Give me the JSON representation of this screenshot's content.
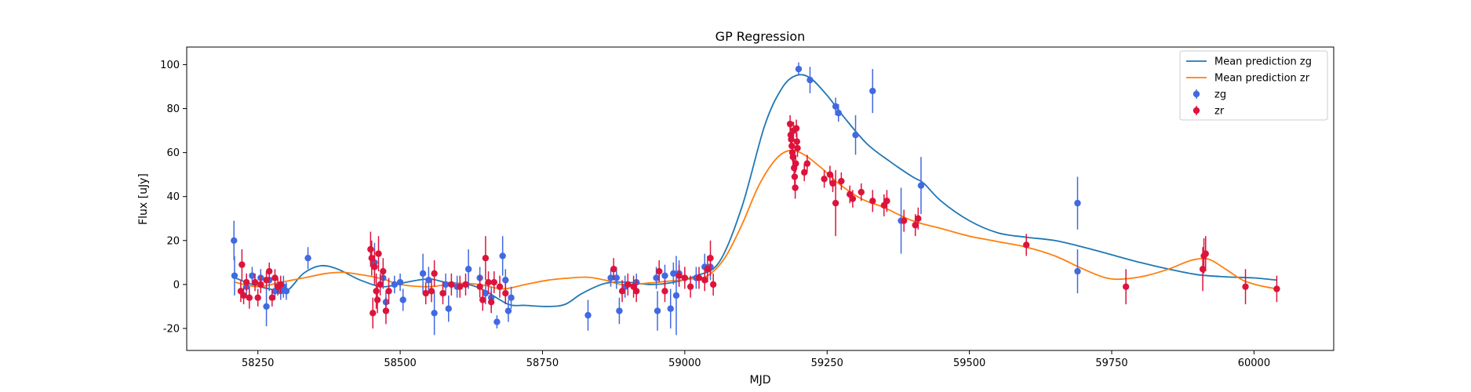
{
  "chart_data": {
    "type": "scatter",
    "title": "GP Regression",
    "xlabel": "MJD",
    "ylabel": "Flux [uJy]",
    "xlim": [
      58125,
      60140
    ],
    "ylim": [
      -30,
      108
    ],
    "xticks": [
      58250,
      58500,
      58750,
      59000,
      59250,
      59500,
      59750,
      60000
    ],
    "yticks": [
      -20,
      0,
      20,
      40,
      60,
      80,
      100
    ],
    "legend": {
      "position": "top-right",
      "entries": [
        {
          "label": "Mean prediction zg",
          "kind": "line",
          "color": "#1f77b4"
        },
        {
          "label": "Mean prediction zr",
          "kind": "line",
          "color": "#ff7f0e"
        },
        {
          "label": "zg",
          "kind": "errorbar",
          "color": "#4169e1"
        },
        {
          "label": "zr",
          "kind": "errorbar",
          "color": "#dc143c"
        }
      ]
    },
    "series": [
      {
        "name": "Mean prediction zg",
        "kind": "line",
        "color": "#1f77b4",
        "points": [
          [
            58210,
            3
          ],
          [
            58240,
            0
          ],
          [
            58270,
            -2
          ],
          [
            58300,
            -3
          ],
          [
            58330,
            5
          ],
          [
            58360,
            8.5
          ],
          [
            58390,
            7
          ],
          [
            58430,
            2
          ],
          [
            58470,
            -1
          ],
          [
            58510,
            1
          ],
          [
            58550,
            2.5
          ],
          [
            58580,
            1
          ],
          [
            58620,
            0
          ],
          [
            58650,
            -3
          ],
          [
            58690,
            -9
          ],
          [
            58720,
            -9.5
          ],
          [
            58760,
            -10
          ],
          [
            58790,
            -9
          ],
          [
            58820,
            -4
          ],
          [
            58860,
            0.5
          ],
          [
            58900,
            1
          ],
          [
            58940,
            0
          ],
          [
            58980,
            1
          ],
          [
            59020,
            4
          ],
          [
            59060,
            10
          ],
          [
            59100,
            35
          ],
          [
            59140,
            72
          ],
          [
            59170,
            89
          ],
          [
            59195,
            95
          ],
          [
            59220,
            94
          ],
          [
            59250,
            86
          ],
          [
            59280,
            76
          ],
          [
            59320,
            64
          ],
          [
            59360,
            56
          ],
          [
            59400,
            49
          ],
          [
            59420,
            46
          ],
          [
            59450,
            38
          ],
          [
            59500,
            29
          ],
          [
            59550,
            23.5
          ],
          [
            59600,
            21.5
          ],
          [
            59650,
            20
          ],
          [
            59700,
            17
          ],
          [
            59750,
            13.5
          ],
          [
            59800,
            10
          ],
          [
            59850,
            7
          ],
          [
            59900,
            4.5
          ],
          [
            59950,
            3.5
          ],
          [
            60000,
            3
          ],
          [
            60040,
            2
          ]
        ]
      },
      {
        "name": "Mean prediction zr",
        "kind": "line",
        "color": "#ff7f0e",
        "points": [
          [
            58210,
            1
          ],
          [
            58250,
            -1
          ],
          [
            58290,
            1
          ],
          [
            58330,
            3
          ],
          [
            58370,
            5
          ],
          [
            58400,
            5.5
          ],
          [
            58430,
            4.5
          ],
          [
            58470,
            2.5
          ],
          [
            58500,
            0
          ],
          [
            58550,
            -1
          ],
          [
            58600,
            0.5
          ],
          [
            58640,
            0
          ],
          [
            58680,
            -2
          ],
          [
            58720,
            0
          ],
          [
            58760,
            2
          ],
          [
            58800,
            3
          ],
          [
            58830,
            3.3
          ],
          [
            58860,
            2
          ],
          [
            58890,
            0
          ],
          [
            58930,
            0.5
          ],
          [
            58970,
            1.5
          ],
          [
            59010,
            2.5
          ],
          [
            59040,
            4
          ],
          [
            59070,
            12
          ],
          [
            59100,
            27
          ],
          [
            59130,
            45
          ],
          [
            59160,
            57
          ],
          [
            59185,
            61
          ],
          [
            59210,
            59
          ],
          [
            59240,
            53
          ],
          [
            59270,
            46
          ],
          [
            59310,
            39
          ],
          [
            59350,
            35
          ],
          [
            59400,
            29
          ],
          [
            59450,
            25.5
          ],
          [
            59500,
            22
          ],
          [
            59550,
            19.5
          ],
          [
            59600,
            17
          ],
          [
            59650,
            13
          ],
          [
            59700,
            7
          ],
          [
            59740,
            3
          ],
          [
            59770,
            2.5
          ],
          [
            59810,
            4
          ],
          [
            59850,
            7
          ],
          [
            59890,
            11
          ],
          [
            59920,
            11.5
          ],
          [
            59950,
            7
          ],
          [
            59980,
            2
          ],
          [
            60010,
            -0.5
          ],
          [
            60040,
            -2
          ]
        ]
      },
      {
        "name": "zg",
        "kind": "errorbar",
        "color": "#4169e1",
        "points": [
          [
            58208,
            20,
            9
          ],
          [
            58209,
            4,
            9
          ],
          [
            58230,
            -1,
            5
          ],
          [
            58240,
            4,
            4
          ],
          [
            58255,
            3,
            4
          ],
          [
            58265,
            -10,
            9
          ],
          [
            58270,
            2,
            5
          ],
          [
            58280,
            -3,
            4
          ],
          [
            58290,
            -3,
            4
          ],
          [
            58295,
            -1,
            5
          ],
          [
            58300,
            -3,
            4
          ],
          [
            58338,
            12,
            5
          ],
          [
            58455,
            10,
            9
          ],
          [
            58470,
            3,
            5
          ],
          [
            58475,
            -8,
            5
          ],
          [
            58490,
            0,
            4
          ],
          [
            58500,
            1,
            4
          ],
          [
            58505,
            -7,
            5
          ],
          [
            58540,
            5,
            9
          ],
          [
            58550,
            2,
            6
          ],
          [
            58560,
            -13,
            10
          ],
          [
            58580,
            0,
            5
          ],
          [
            58585,
            -11,
            6
          ],
          [
            58600,
            -1,
            5
          ],
          [
            58620,
            7,
            9
          ],
          [
            58640,
            3,
            5
          ],
          [
            58650,
            -4,
            5
          ],
          [
            58660,
            -6,
            5
          ],
          [
            58670,
            -17,
            3
          ],
          [
            58680,
            13,
            9
          ],
          [
            58685,
            2,
            5
          ],
          [
            58690,
            -12,
            5
          ],
          [
            58695,
            -6,
            5
          ],
          [
            58830,
            -14,
            7
          ],
          [
            58870,
            3,
            4
          ],
          [
            58880,
            3,
            5
          ],
          [
            58885,
            -12,
            6
          ],
          [
            58895,
            -1,
            5
          ],
          [
            58915,
            1,
            4
          ],
          [
            58950,
            3,
            5
          ],
          [
            58952,
            -12,
            9
          ],
          [
            58965,
            4,
            5
          ],
          [
            58975,
            -11,
            9
          ],
          [
            58980,
            5,
            5
          ],
          [
            58985,
            -5,
            18
          ],
          [
            58990,
            5,
            6
          ],
          [
            59020,
            3,
            5
          ],
          [
            59035,
            8,
            6
          ],
          [
            59045,
            8,
            6
          ],
          [
            59200,
            98,
            3
          ],
          [
            59220,
            93,
            6
          ],
          [
            59265,
            81,
            4
          ],
          [
            59270,
            78,
            4
          ],
          [
            59300,
            68,
            9
          ],
          [
            59330,
            88,
            10
          ],
          [
            59380,
            29,
            15
          ],
          [
            59415,
            45,
            13
          ],
          [
            59690,
            37,
            12
          ],
          [
            59690,
            6,
            10
          ]
        ]
      },
      {
        "name": "zr",
        "kind": "errorbar",
        "color": "#dc143c",
        "points": [
          [
            58220,
            -3,
            5
          ],
          [
            58222,
            9,
            7
          ],
          [
            58225,
            -5,
            4
          ],
          [
            58230,
            1,
            4
          ],
          [
            58235,
            -6,
            5
          ],
          [
            58245,
            1,
            4
          ],
          [
            58250,
            -6,
            4
          ],
          [
            58255,
            0,
            4
          ],
          [
            58265,
            2,
            4
          ],
          [
            58270,
            6,
            4
          ],
          [
            58275,
            -6,
            4
          ],
          [
            58280,
            3,
            4
          ],
          [
            58285,
            -1,
            4
          ],
          [
            58290,
            0,
            4
          ],
          [
            58448,
            16,
            8
          ],
          [
            58450,
            12,
            8
          ],
          [
            58452,
            -13,
            7
          ],
          [
            58455,
            8,
            8
          ],
          [
            58458,
            -3,
            8
          ],
          [
            58460,
            -7,
            6
          ],
          [
            58462,
            14,
            8
          ],
          [
            58465,
            0,
            5
          ],
          [
            58470,
            6,
            6
          ],
          [
            58475,
            -12,
            6
          ],
          [
            58480,
            -3,
            6
          ],
          [
            58545,
            -4,
            5
          ],
          [
            58555,
            -3,
            5
          ],
          [
            58560,
            5,
            6
          ],
          [
            58575,
            -4,
            5
          ],
          [
            58590,
            0,
            5
          ],
          [
            58605,
            -1,
            5
          ],
          [
            58615,
            0,
            5
          ],
          [
            58640,
            -1,
            5
          ],
          [
            58645,
            -7,
            5
          ],
          [
            58650,
            12,
            10
          ],
          [
            58655,
            1,
            5
          ],
          [
            58660,
            -8,
            5
          ],
          [
            58665,
            1,
            5
          ],
          [
            58675,
            -1,
            5
          ],
          [
            58685,
            -4,
            5
          ],
          [
            58875,
            7,
            5
          ],
          [
            58890,
            -3,
            5
          ],
          [
            58900,
            0,
            5
          ],
          [
            58910,
            -1,
            5
          ],
          [
            58915,
            -3,
            5
          ],
          [
            58955,
            6,
            5
          ],
          [
            58965,
            -3,
            5
          ],
          [
            58990,
            4,
            5
          ],
          [
            59000,
            3,
            5
          ],
          [
            59010,
            -1,
            5
          ],
          [
            59025,
            3,
            5
          ],
          [
            59035,
            2,
            5
          ],
          [
            59040,
            7,
            6
          ],
          [
            59045,
            12,
            8
          ],
          [
            59050,
            0,
            5
          ],
          [
            59185,
            73,
            4
          ],
          [
            59186,
            68,
            4
          ],
          [
            59187,
            66,
            4
          ],
          [
            59188,
            63,
            4
          ],
          [
            59189,
            60,
            4
          ],
          [
            59190,
            58,
            4
          ],
          [
            59191,
            70,
            4
          ],
          [
            59192,
            53,
            4
          ],
          [
            59193,
            49,
            4
          ],
          [
            59194,
            44,
            5
          ],
          [
            59195,
            55,
            4
          ],
          [
            59196,
            71,
            4
          ],
          [
            59197,
            65,
            4
          ],
          [
            59198,
            62,
            4
          ],
          [
            59210,
            51,
            4
          ],
          [
            59215,
            55,
            4
          ],
          [
            59245,
            48,
            4
          ],
          [
            59255,
            50,
            4
          ],
          [
            59260,
            46,
            4
          ],
          [
            59265,
            37,
            15
          ],
          [
            59275,
            47,
            4
          ],
          [
            59290,
            41,
            4
          ],
          [
            59295,
            39,
            4
          ],
          [
            59310,
            42,
            4
          ],
          [
            59330,
            38,
            5
          ],
          [
            59350,
            36,
            5
          ],
          [
            59355,
            38,
            5
          ],
          [
            59385,
            29,
            5
          ],
          [
            59405,
            27,
            5
          ],
          [
            59410,
            30,
            5
          ],
          [
            59600,
            18,
            5
          ],
          [
            59775,
            -1,
            8
          ],
          [
            59910,
            7,
            10
          ],
          [
            59912,
            13,
            8
          ],
          [
            59915,
            14,
            8
          ],
          [
            59985,
            -1,
            8
          ],
          [
            60040,
            -2,
            6
          ]
        ]
      }
    ]
  }
}
